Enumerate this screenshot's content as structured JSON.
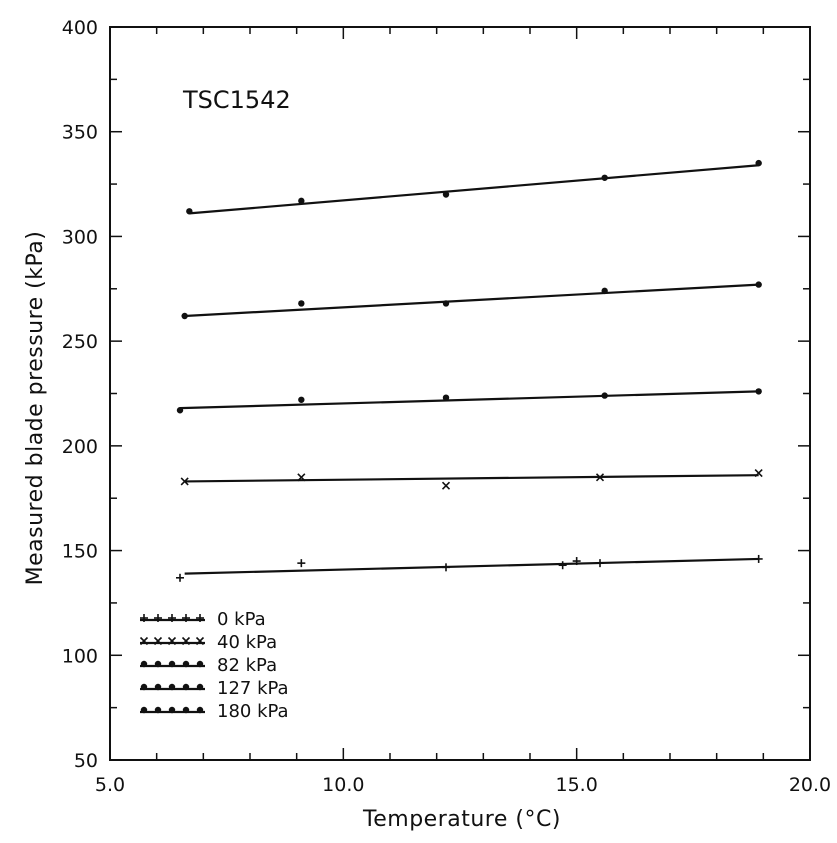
{
  "chart_data": {
    "type": "scatter",
    "annotation": "TSC1542",
    "xlabel": "Temperature (°C)",
    "ylabel": "Measured blade pressure (kPa)",
    "xlim": [
      5.0,
      20.0
    ],
    "ylim": [
      50,
      400
    ],
    "x_ticks": [
      "5.0",
      "10.0",
      "15.0",
      "20.0"
    ],
    "y_ticks": [
      "50",
      "100",
      "150",
      "200",
      "250",
      "300",
      "350",
      "400"
    ],
    "grid": false,
    "legend_position": "bottom-left",
    "series": [
      {
        "name": "0  kPa",
        "marker": "plus",
        "points": [
          [
            6.5,
            137
          ],
          [
            9.1,
            144
          ],
          [
            12.2,
            142
          ],
          [
            14.7,
            143
          ],
          [
            15.0,
            145
          ],
          [
            15.5,
            144
          ],
          [
            18.9,
            146
          ]
        ],
        "fit": [
          [
            6.6,
            139
          ],
          [
            18.9,
            146
          ]
        ]
      },
      {
        "name": "40  kPa",
        "marker": "cross",
        "points": [
          [
            6.6,
            183
          ],
          [
            9.1,
            185
          ],
          [
            12.2,
            181
          ],
          [
            15.5,
            185
          ],
          [
            18.9,
            187
          ]
        ],
        "fit": [
          [
            6.6,
            183
          ],
          [
            18.9,
            186
          ]
        ]
      },
      {
        "name": "82  kPa",
        "marker": "dot",
        "points": [
          [
            6.5,
            217
          ],
          [
            9.1,
            222
          ],
          [
            12.2,
            223
          ],
          [
            15.6,
            224
          ],
          [
            18.9,
            226
          ]
        ],
        "fit": [
          [
            6.5,
            218
          ],
          [
            18.9,
            226
          ]
        ]
      },
      {
        "name": "127  kPa",
        "marker": "dot",
        "points": [
          [
            6.6,
            262
          ],
          [
            9.1,
            268
          ],
          [
            12.2,
            268
          ],
          [
            15.6,
            274
          ],
          [
            18.9,
            277
          ]
        ],
        "fit": [
          [
            6.6,
            262
          ],
          [
            18.9,
            277
          ]
        ]
      },
      {
        "name": "180  kPa",
        "marker": "dot",
        "points": [
          [
            6.7,
            312
          ],
          [
            9.1,
            317
          ],
          [
            12.2,
            320
          ],
          [
            15.6,
            328
          ],
          [
            18.9,
            335
          ]
        ],
        "fit": [
          [
            6.7,
            311
          ],
          [
            18.9,
            334
          ]
        ]
      }
    ]
  }
}
